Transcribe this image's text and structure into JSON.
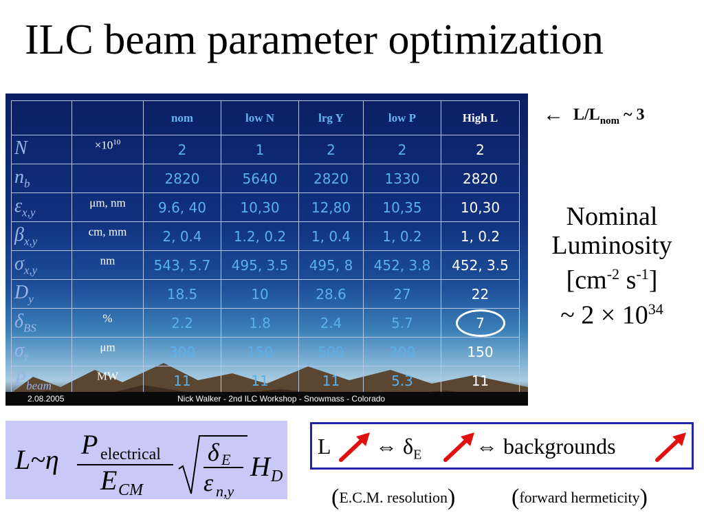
{
  "slide": {
    "title": "ILC beam parameter optimization"
  },
  "table": {
    "headers": [
      "",
      "",
      "nom",
      "low N",
      "lrg Y",
      "low P",
      "High L"
    ],
    "rows": [
      {
        "symbol": "N",
        "sub": "",
        "unit": "×10",
        "unit_sup": "10",
        "values": [
          "2",
          "1",
          "2",
          "2",
          "2"
        ]
      },
      {
        "symbol": "n",
        "sub": "b",
        "unit": "",
        "unit_sup": "",
        "values": [
          "2820",
          "5640",
          "2820",
          "1330",
          "2820"
        ]
      },
      {
        "symbol": "ε",
        "sub": "x,y",
        "unit": "μm, nm",
        "unit_sup": "",
        "values": [
          "9.6, 40",
          "10,30",
          "12,80",
          "10,35",
          "10,30"
        ]
      },
      {
        "symbol": "β",
        "sub": "x,y",
        "unit": "cm, mm",
        "unit_sup": "",
        "values": [
          "2, 0.4",
          "1.2, 0.2",
          "1, 0.4",
          "1, 0.2",
          "1, 0.2"
        ]
      },
      {
        "symbol": "σ",
        "sub": "x,y",
        "unit": "nm",
        "unit_sup": "",
        "values": [
          "543, 5.7",
          "495, 3.5",
          "495, 8",
          "452, 3.8",
          "452, 3.5"
        ]
      },
      {
        "symbol": "D",
        "sub": "y",
        "unit": "",
        "unit_sup": "",
        "values": [
          "18.5",
          "10",
          "28.6",
          "27",
          "22"
        ]
      },
      {
        "symbol": "δ",
        "sub": "BS",
        "unit": "%",
        "unit_sup": "",
        "values": [
          "2.2",
          "1.8",
          "2.4",
          "5.7",
          "7"
        ]
      },
      {
        "symbol": "σ",
        "sub": "z",
        "unit": "μm",
        "unit_sup": "",
        "values": [
          "300",
          "150",
          "500",
          "200",
          "150"
        ]
      },
      {
        "symbol": "P",
        "sub": "beam",
        "unit": "MW",
        "unit_sup": "",
        "values": [
          "11",
          "11",
          "11",
          "5.3",
          "11"
        ]
      }
    ],
    "footer_date": "2.08.2005",
    "footer_credit": "Nick Walker - 2nd ILC Workshop - Snowmass - Colorado"
  },
  "annotations": {
    "ratio_arrow": "←",
    "ratio_label": "L/L",
    "ratio_sub": "nom",
    "ratio_value": "~  3",
    "lumi_line1": "Nominal",
    "lumi_line2": "Luminosity",
    "lumi_unit_open": "[cm",
    "lumi_unit_exp1": "-2",
    "lumi_unit_mid": " s",
    "lumi_unit_exp2": "-1",
    "lumi_unit_close": "]",
    "lumi_value": "~ 2 × 10",
    "lumi_value_exp": "34"
  },
  "formula": {
    "lhs": "L~η",
    "p": "P",
    "p_sub": "electrical",
    "e": "E",
    "e_sub": "CM",
    "delta": "δ",
    "delta_sub": "E",
    "eps": "ε",
    "eps_sub": "n,y",
    "h": "H",
    "h_sub": "D"
  },
  "relation": {
    "l": "L",
    "equiv1": "⇔ δ",
    "delta_sub": "E",
    "equiv2": "⇔ backgrounds",
    "arrow_color": "#e01010",
    "note1": "E.C.M. resolution",
    "note2": "forward hermeticity",
    "paren_open": "(",
    "paren_close": ")"
  }
}
